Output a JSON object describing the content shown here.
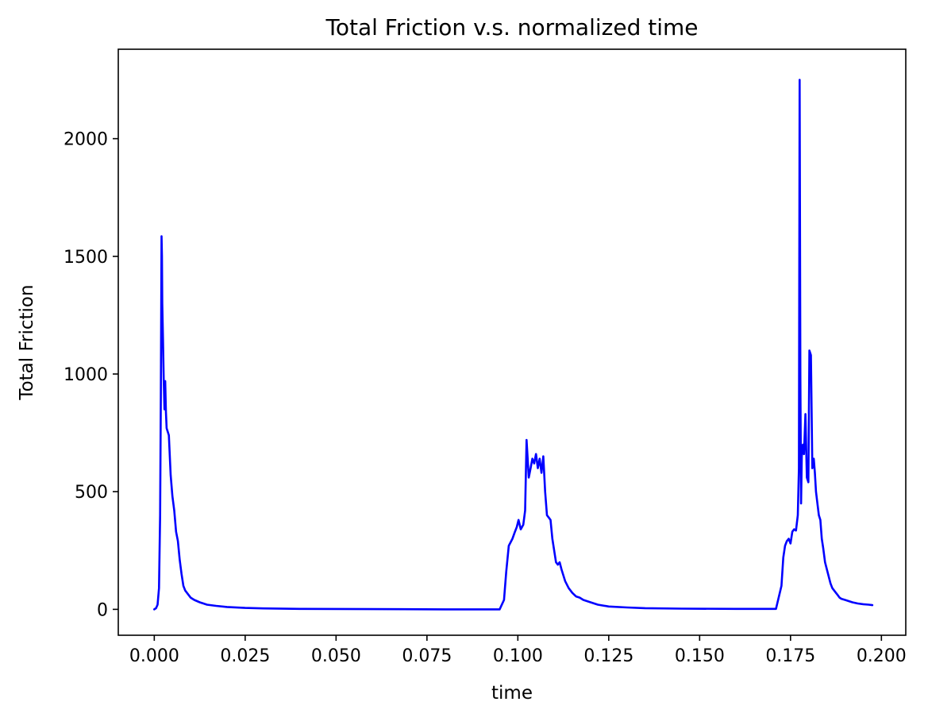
{
  "chart_data": {
    "type": "line",
    "title": "Total Friction v.s. normalized time",
    "xlabel": "time",
    "ylabel": "Total Friction",
    "xlim": [
      -0.0099,
      0.2067
    ],
    "ylim": [
      -110,
      2380
    ],
    "grid": false,
    "x_ticks": [
      0.0,
      0.025,
      0.05,
      0.075,
      0.1,
      0.125,
      0.15,
      0.175,
      0.2
    ],
    "x_tick_labels": [
      "0.000",
      "0.025",
      "0.050",
      "0.075",
      "0.100",
      "0.125",
      "0.150",
      "0.175",
      "0.200"
    ],
    "y_ticks": [
      0,
      500,
      1000,
      1500,
      2000
    ],
    "y_tick_labels": [
      "0",
      "500",
      "1000",
      "1500",
      "2000"
    ],
    "series": [
      {
        "color": "#0000ff",
        "x": [
          0.0,
          0.0005,
          0.0009,
          0.0013,
          0.0016,
          0.0018,
          0.002,
          0.0021,
          0.0022,
          0.0024,
          0.0026,
          0.0028,
          0.003,
          0.0032,
          0.0034,
          0.0036,
          0.004,
          0.0045,
          0.005,
          0.0055,
          0.006,
          0.0065,
          0.007,
          0.0075,
          0.008,
          0.0085,
          0.009,
          0.01,
          0.011,
          0.0125,
          0.0145,
          0.017,
          0.02,
          0.025,
          0.03,
          0.04,
          0.06,
          0.08,
          0.095,
          0.0962,
          0.0968,
          0.0975,
          0.0985,
          0.0992,
          0.0997,
          0.1002,
          0.1008,
          0.1015,
          0.102,
          0.1024,
          0.1027,
          0.103,
          0.1035,
          0.104,
          0.1045,
          0.105,
          0.1055,
          0.106,
          0.1065,
          0.107,
          0.1075,
          0.108,
          0.1085,
          0.109,
          0.1095,
          0.11,
          0.1105,
          0.111,
          0.1115,
          0.112,
          0.113,
          0.114,
          0.115,
          0.116,
          0.117,
          0.118,
          0.12,
          0.122,
          0.125,
          0.13,
          0.135,
          0.145,
          0.16,
          0.171,
          0.1725,
          0.173,
          0.1735,
          0.174,
          0.1745,
          0.175,
          0.1755,
          0.176,
          0.1765,
          0.177,
          0.1773,
          0.1775,
          0.1777,
          0.1779,
          0.1781,
          0.1784,
          0.1787,
          0.1791,
          0.1795,
          0.1799,
          0.1802,
          0.1806,
          0.181,
          0.1814,
          0.1817,
          0.182,
          0.1824,
          0.1828,
          0.1832,
          0.1836,
          0.184,
          0.1845,
          0.185,
          0.1855,
          0.186,
          0.1865,
          0.187,
          0.1875,
          0.188,
          0.1885,
          0.189,
          0.19,
          0.191,
          0.192,
          0.1935,
          0.195,
          0.1965,
          0.1975
        ],
        "y": [
          0,
          5,
          20,
          90,
          400,
          900,
          1585,
          1500,
          1300,
          1150,
          980,
          850,
          970,
          840,
          770,
          760,
          740,
          570,
          480,
          420,
          330,
          290,
          210,
          150,
          100,
          80,
          70,
          50,
          40,
          30,
          20,
          15,
          10,
          6,
          4,
          2,
          1,
          0,
          0,
          40,
          160,
          270,
          300,
          330,
          350,
          380,
          340,
          360,
          420,
          720,
          640,
          560,
          600,
          640,
          620,
          660,
          600,
          640,
          580,
          650,
          500,
          400,
          390,
          380,
          300,
          250,
          200,
          190,
          200,
          170,
          120,
          90,
          70,
          55,
          50,
          40,
          30,
          20,
          12,
          8,
          5,
          3,
          2,
          2,
          100,
          220,
          270,
          290,
          300,
          280,
          330,
          340,
          335,
          400,
          600,
          2250,
          1000,
          450,
          650,
          700,
          660,
          830,
          560,
          540,
          1100,
          1080,
          600,
          640,
          580,
          500,
          450,
          400,
          380,
          300,
          260,
          200,
          170,
          140,
          110,
          90,
          80,
          70,
          60,
          50,
          45,
          40,
          35,
          30,
          25,
          22,
          20,
          18
        ]
      }
    ]
  }
}
